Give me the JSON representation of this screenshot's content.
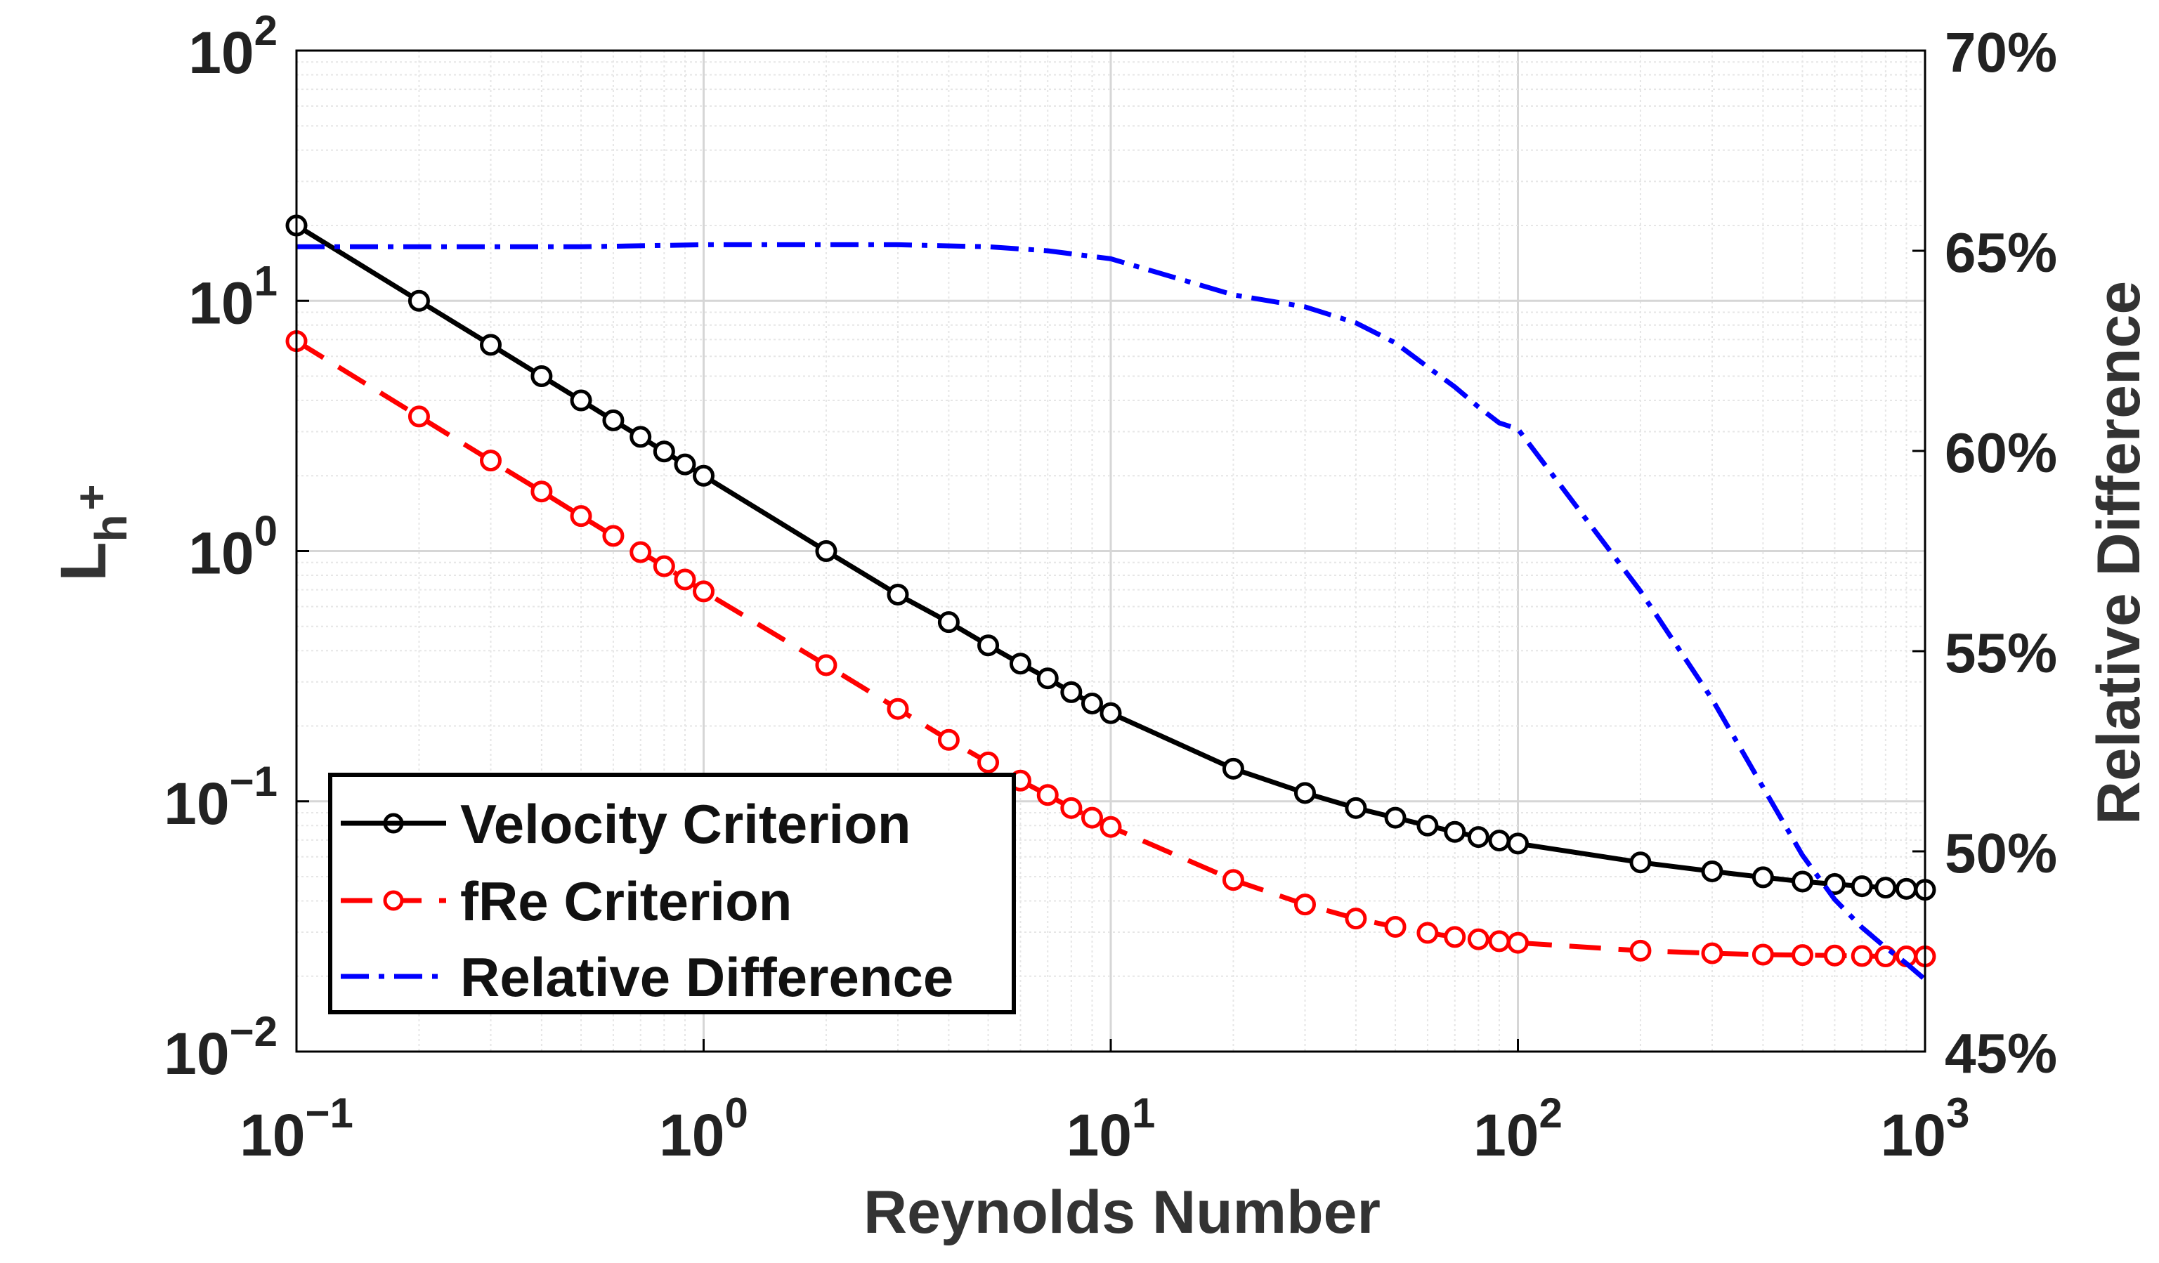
{
  "chart_data": {
    "type": "line",
    "x_scale": "log",
    "y_scale": "log",
    "xlim": [
      0.1,
      1000
    ],
    "ylim": [
      0.01,
      100
    ],
    "y2lim": [
      45,
      70
    ],
    "xlabel": "Reynolds Number",
    "ylabel": {
      "base": "L",
      "sup": "+",
      "sub": "h"
    },
    "y2label": "Relative Difference",
    "x_ticks": [
      {
        "base": "10",
        "exp": "−1"
      },
      {
        "base": "10",
        "exp": "0"
      },
      {
        "base": "10",
        "exp": "1"
      },
      {
        "base": "10",
        "exp": "2"
      },
      {
        "base": "10",
        "exp": "3"
      }
    ],
    "y_ticks": [
      {
        "base": "10",
        "exp": "−2"
      },
      {
        "base": "10",
        "exp": "−1"
      },
      {
        "base": "10",
        "exp": "0"
      },
      {
        "base": "10",
        "exp": "1"
      },
      {
        "base": "10",
        "exp": "2"
      }
    ],
    "y2_ticks": [
      "45%",
      "50%",
      "55%",
      "60%",
      "65%",
      "70%"
    ],
    "grid": true,
    "legend_position": "bottom-left",
    "x": [
      0.1,
      0.2,
      0.3,
      0.4,
      0.5,
      0.6,
      0.7,
      0.8,
      0.9,
      1,
      2,
      3,
      4,
      5,
      6,
      7,
      8,
      9,
      10,
      20,
      30,
      40,
      50,
      60,
      70,
      80,
      90,
      100,
      200,
      300,
      400,
      500,
      600,
      700,
      800,
      900,
      1000
    ],
    "series": [
      {
        "name": "Velocity Criterion",
        "axis": "left",
        "color": "#000000",
        "line": "solid",
        "marker": "circle",
        "values": [
          20,
          10,
          6.67,
          5,
          4,
          3.33,
          2.86,
          2.5,
          2.22,
          2.0,
          1.0,
          0.67,
          0.52,
          0.42,
          0.355,
          0.31,
          0.273,
          0.246,
          0.225,
          0.135,
          0.108,
          0.094,
          0.086,
          0.08,
          0.0755,
          0.072,
          0.0697,
          0.0678,
          0.057,
          0.0525,
          0.0497,
          0.0478,
          0.0467,
          0.0458,
          0.0452,
          0.0447,
          0.0443
        ]
      },
      {
        "name": "fRe Criterion",
        "axis": "left",
        "color": "#ff0000",
        "line": "dashed",
        "marker": "circle",
        "values": [
          6.9,
          3.45,
          2.3,
          1.73,
          1.38,
          1.15,
          0.99,
          0.87,
          0.77,
          0.69,
          0.35,
          0.234,
          0.176,
          0.143,
          0.121,
          0.106,
          0.094,
          0.086,
          0.079,
          0.0485,
          0.0387,
          0.034,
          0.0315,
          0.0298,
          0.0287,
          0.0281,
          0.0276,
          0.0272,
          0.0253,
          0.0247,
          0.0244,
          0.0243,
          0.0242,
          0.0241,
          0.024,
          0.024,
          0.024
        ]
      },
      {
        "name": "Relative Difference",
        "axis": "right",
        "color": "#0000ff",
        "line": "dashdot",
        "marker": "none",
        "x": [
          0.1,
          0.2,
          0.3,
          0.5,
          1,
          2,
          3,
          5,
          7,
          10,
          20,
          30,
          40,
          50,
          60,
          70,
          80,
          90,
          100,
          200,
          300,
          400,
          500,
          600,
          700,
          800,
          900,
          1000
        ],
        "values": [
          65.1,
          65.1,
          65.1,
          65.1,
          65.15,
          65.15,
          65.15,
          65.1,
          65.0,
          64.8,
          63.9,
          63.6,
          63.2,
          62.7,
          62.1,
          61.6,
          61.1,
          60.7,
          60.55,
          56.5,
          53.8,
          51.6,
          49.9,
          48.8,
          48.1,
          47.6,
          47.2,
          46.8
        ]
      }
    ]
  }
}
